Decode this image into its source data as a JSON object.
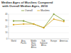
{
  "chart_data": {
    "type": "line",
    "title": "Median Ages of Muslims Compared with Overall Median Ages, 2010",
    "categories": [
      "World",
      "Asia-Pacific",
      "Middle East-North Africa",
      "Sub-Saharan Africa",
      "Europe",
      "Americas"
    ],
    "series": [
      {
        "name": "Overall",
        "color": "#7b9a2e",
        "marker": "circle",
        "values": [
          29,
          29,
          24,
          18,
          40,
          30
        ]
      },
      {
        "name": "Muslims",
        "color": "#d9a21b",
        "marker": "circle",
        "values": [
          23,
          24,
          24,
          18,
          32,
          28
        ]
      }
    ],
    "ylim": [
      0,
      40
    ],
    "yticks": [
      0,
      10,
      20,
      30,
      40
    ],
    "grid": true,
    "legend": "top"
  }
}
